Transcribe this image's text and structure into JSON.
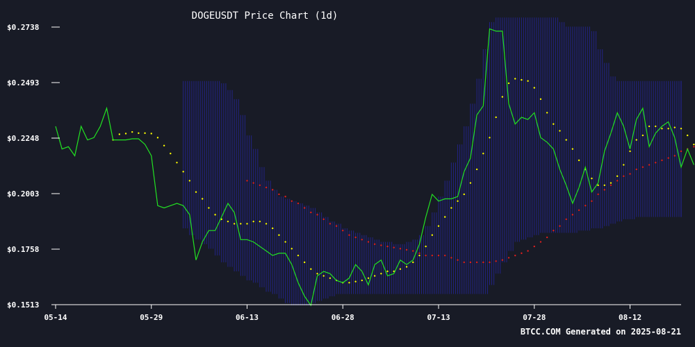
{
  "chart_data": {
    "type": "line",
    "title": "DOGEUSDT Price Chart (1d)",
    "xlabel": "",
    "ylabel": "",
    "footer": "BTCC.COM Generated on 2025-08-21",
    "x_start": "2025-05-14",
    "x_end": "2025-08-20",
    "ylim": [
      0.1513,
      0.2738
    ],
    "y_ticks": [
      "$0.2738",
      "$0.2493",
      "$0.2248",
      "$0.2003",
      "$0.1758",
      "$0.1513"
    ],
    "y_tick_values": [
      0.2738,
      0.2493,
      0.2248,
      0.2003,
      0.1758,
      0.1513
    ],
    "x_ticks": [
      "05-14",
      "05-29",
      "06-13",
      "06-28",
      "07-13",
      "07-28",
      "08-12"
    ],
    "x_tick_dates": [
      "2025-05-14",
      "2025-05-29",
      "2025-06-13",
      "2025-06-28",
      "2025-07-13",
      "2025-07-28",
      "2025-08-12"
    ],
    "grid": false,
    "colors": {
      "background": "#181b26",
      "price": "#22e322",
      "ma_short": "#ffff00",
      "ma_long": "#e01f1f",
      "bands": "#2626a6",
      "axis": "#ffffff"
    },
    "series": [
      {
        "style": "line",
        "color": "#22e322",
        "values": [
          0.23,
          0.22,
          0.221,
          0.217,
          0.23,
          0.224,
          0.225,
          0.23,
          0.238,
          0.224,
          0.224,
          0.224,
          0.2245,
          0.2245,
          0.222,
          0.217,
          0.195,
          0.194,
          0.195,
          0.196,
          0.195,
          0.191,
          0.171,
          0.179,
          0.184,
          0.184,
          0.19,
          0.196,
          0.192,
          0.18,
          0.18,
          0.179,
          0.177,
          0.175,
          0.173,
          0.174,
          0.174,
          0.169,
          0.161,
          0.155,
          0.151,
          0.164,
          0.166,
          0.165,
          0.162,
          0.161,
          0.163,
          0.169,
          0.166,
          0.16,
          0.169,
          0.171,
          0.164,
          0.165,
          0.171,
          0.169,
          0.171,
          0.178,
          0.19,
          0.2,
          0.197,
          0.198,
          0.198,
          0.199,
          0.21,
          0.216,
          0.235,
          0.239,
          0.273,
          0.272,
          0.272,
          0.24,
          0.231,
          0.234,
          0.233,
          0.236,
          0.225,
          0.223,
          0.22,
          0.211,
          0.204,
          0.196,
          0.203,
          0.212,
          0.201,
          0.205,
          0.219,
          0.227,
          0.236,
          0.23,
          0.22,
          0.233,
          0.238,
          0.221,
          0.227,
          0.23,
          0.232,
          0.225,
          0.212,
          0.22,
          0.213
        ]
      },
      {
        "style": "dots",
        "color": "#ffff00",
        "start_index": 9,
        "values": [
          0.224,
          0.2265,
          0.2268,
          0.2275,
          0.227,
          0.227,
          0.2268,
          0.225,
          0.2215,
          0.218,
          0.214,
          0.21,
          0.206,
          0.201,
          0.198,
          0.194,
          0.191,
          0.189,
          0.188,
          0.187,
          0.187,
          0.187,
          0.188,
          0.188,
          0.187,
          0.185,
          0.182,
          0.179,
          0.176,
          0.173,
          0.17,
          0.167,
          0.165,
          0.164,
          0.163,
          0.162,
          0.161,
          0.161,
          0.1615,
          0.162,
          0.163,
          0.164,
          0.165,
          0.166,
          0.166,
          0.167,
          0.168,
          0.17,
          0.173,
          0.177,
          0.182,
          0.186,
          0.19,
          0.194,
          0.197,
          0.2,
          0.205,
          0.211,
          0.218,
          0.225,
          0.234,
          0.243,
          0.249,
          0.251,
          0.2505,
          0.25,
          0.247,
          0.242,
          0.236,
          0.231,
          0.228,
          0.224,
          0.22,
          0.215,
          0.211,
          0.207,
          0.204,
          0.204,
          0.205,
          0.208,
          0.213,
          0.219,
          0.224,
          0.226,
          0.23,
          0.23,
          0.229,
          0.229,
          0.2295,
          0.229,
          0.226,
          0.222
        ]
      },
      {
        "style": "dots",
        "color": "#e01f1f",
        "start_index": 30,
        "values": [
          0.206,
          0.205,
          0.204,
          0.203,
          0.202,
          0.2,
          0.199,
          0.197,
          0.196,
          0.194,
          0.192,
          0.191,
          0.189,
          0.187,
          0.186,
          0.184,
          0.182,
          0.181,
          0.18,
          0.179,
          0.178,
          0.1775,
          0.177,
          0.1765,
          0.176,
          0.1755,
          0.175,
          0.174,
          0.173,
          0.173,
          0.173,
          0.173,
          0.172,
          0.171,
          0.17,
          0.17,
          0.17,
          0.17,
          0.17,
          0.1705,
          0.171,
          0.172,
          0.173,
          0.174,
          0.175,
          0.177,
          0.179,
          0.181,
          0.184,
          0.186,
          0.189,
          0.191,
          0.193,
          0.195,
          0.197,
          0.2,
          0.202,
          0.204,
          0.206,
          0.208,
          0.209,
          0.211,
          0.212,
          0.213,
          0.214,
          0.215,
          0.216,
          0.217,
          0.219,
          0.22,
          0.221,
          0.222,
          0.224,
          0.225,
          0.226,
          0.227,
          0.227
        ]
      }
    ],
    "bands": {
      "start_index": 20,
      "upper": [
        0.25,
        0.25,
        0.25,
        0.25,
        0.25,
        0.25,
        0.249,
        0.246,
        0.242,
        0.235,
        0.226,
        0.22,
        0.212,
        0.206,
        0.202,
        0.199,
        0.198,
        0.197,
        0.196,
        0.195,
        0.194,
        0.192,
        0.19,
        0.188,
        0.187,
        0.185,
        0.184,
        0.183,
        0.182,
        0.181,
        0.18,
        0.179,
        0.179,
        0.178,
        0.178,
        0.179,
        0.18,
        0.182,
        0.186,
        0.192,
        0.199,
        0.206,
        0.214,
        0.222,
        0.23,
        0.24,
        0.251,
        0.264,
        0.276,
        0.278,
        0.278,
        0.278,
        0.278,
        0.278,
        0.278,
        0.278,
        0.278,
        0.278,
        0.278,
        0.276,
        0.274,
        0.274,
        0.274,
        0.274,
        0.272,
        0.264,
        0.258,
        0.252,
        0.25,
        0.25,
        0.25,
        0.25,
        0.25,
        0.25,
        0.25,
        0.25,
        0.25,
        0.25,
        0.25,
        0.25,
        0.25
      ],
      "lower": [
        0.185,
        0.182,
        0.18,
        0.178,
        0.176,
        0.173,
        0.17,
        0.168,
        0.166,
        0.164,
        0.162,
        0.161,
        0.159,
        0.157,
        0.156,
        0.154,
        0.152,
        0.151,
        0.151,
        0.151,
        0.152,
        0.153,
        0.154,
        0.155,
        0.156,
        0.156,
        0.156,
        0.156,
        0.156,
        0.156,
        0.156,
        0.156,
        0.156,
        0.156,
        0.156,
        0.156,
        0.156,
        0.156,
        0.156,
        0.156,
        0.156,
        0.156,
        0.156,
        0.156,
        0.156,
        0.156,
        0.156,
        0.156,
        0.16,
        0.165,
        0.17,
        0.175,
        0.179,
        0.18,
        0.181,
        0.182,
        0.183,
        0.183,
        0.183,
        0.183,
        0.183,
        0.183,
        0.184,
        0.184,
        0.185,
        0.185,
        0.186,
        0.187,
        0.188,
        0.189,
        0.189,
        0.19,
        0.19,
        0.19,
        0.19,
        0.19,
        0.19,
        0.19,
        0.19,
        0.19,
        0.19
      ]
    }
  }
}
